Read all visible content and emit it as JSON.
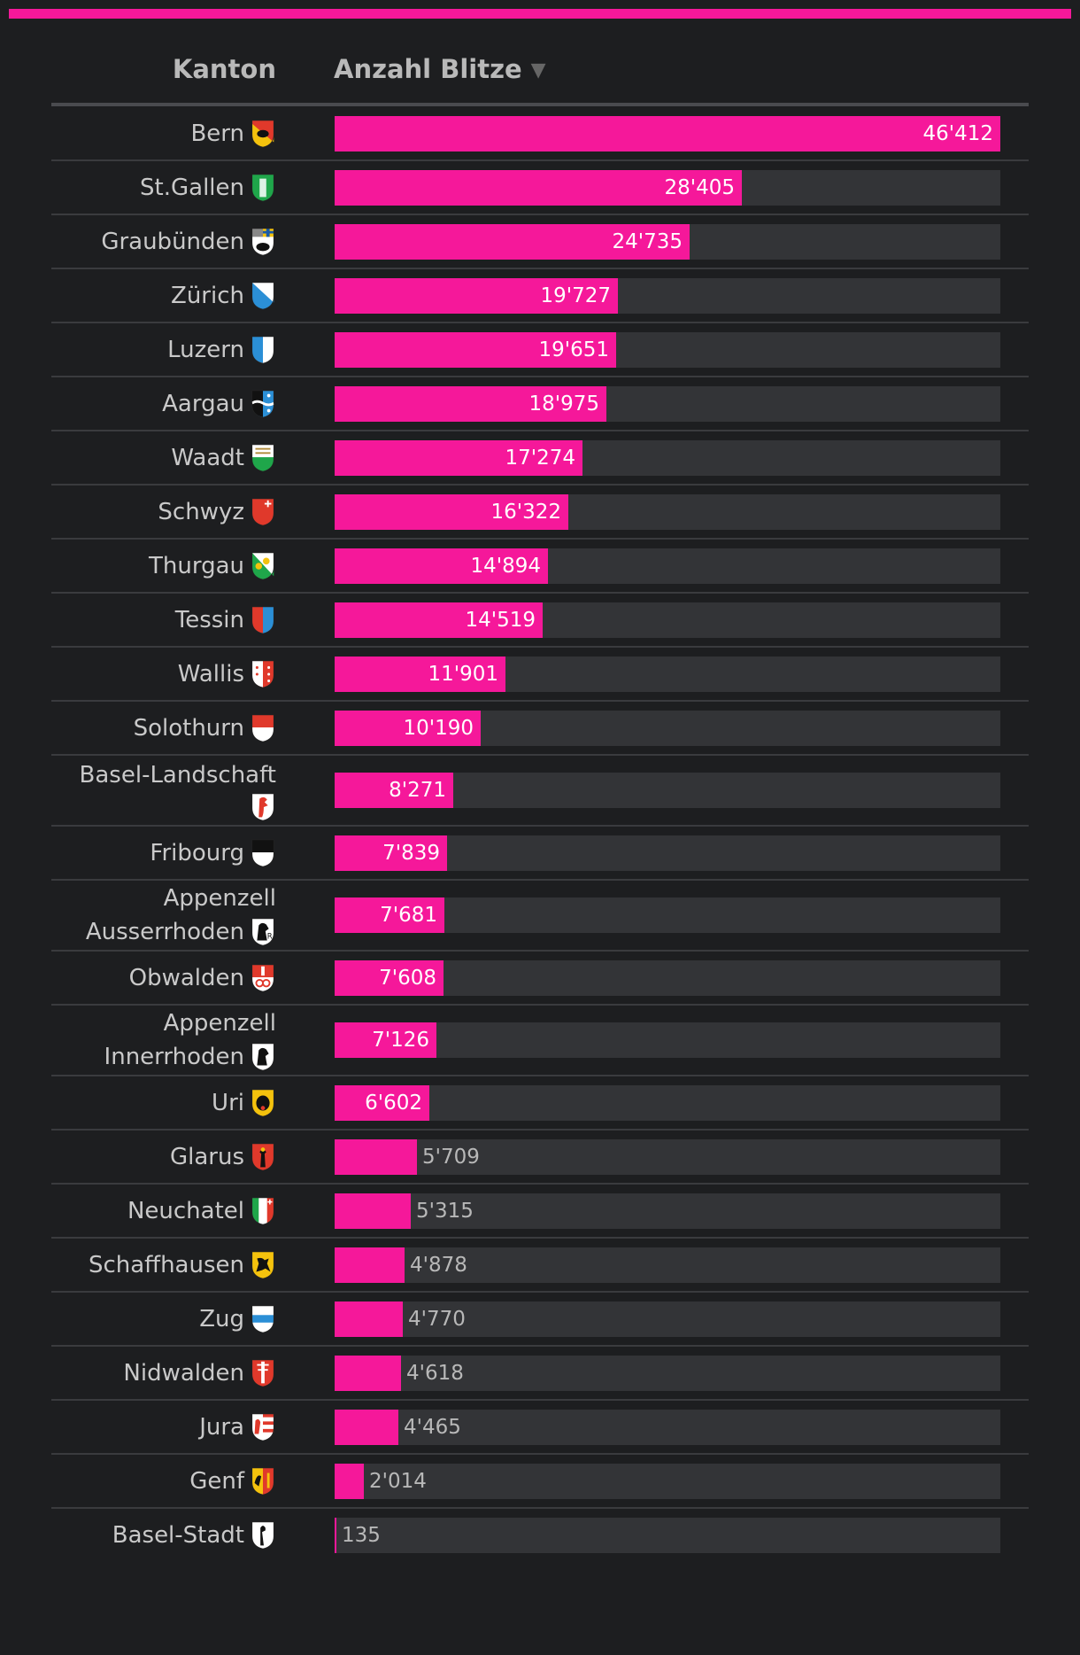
{
  "header": {
    "kanton": "Kanton",
    "anzahl": "Anzahl Blitze",
    "sort_icon": "▼"
  },
  "colors": {
    "bar": "#f5189a",
    "track": "#333437",
    "background": "#1d1e20"
  },
  "chart_data": {
    "type": "bar",
    "orientation": "horizontal",
    "xlim": [
      0,
      46412
    ],
    "categories": [
      "Bern",
      "St.Gallen",
      "Graubünden",
      "Zürich",
      "Luzern",
      "Aargau",
      "Waadt",
      "Schwyz",
      "Thurgau",
      "Tessin",
      "Wallis",
      "Solothurn",
      "Basel-Landschaft",
      "Fribourg",
      "Appenzell Ausserrhoden",
      "Obwalden",
      "Appenzell Innerrhoden",
      "Uri",
      "Glarus",
      "Neuchatel",
      "Schaffhausen",
      "Zug",
      "Nidwalden",
      "Jura",
      "Genf",
      "Basel-Stadt"
    ],
    "values": [
      46412,
      28405,
      24735,
      19727,
      19651,
      18975,
      17274,
      16322,
      14894,
      14519,
      11901,
      10190,
      8271,
      7839,
      7681,
      7608,
      7126,
      6602,
      5709,
      5315,
      4878,
      4770,
      4618,
      4465,
      2014,
      135
    ],
    "labels": [
      "46'412",
      "28'405",
      "24'735",
      "19'727",
      "19'651",
      "18'975",
      "17'274",
      "16'322",
      "14'894",
      "14'519",
      "11'901",
      "10'190",
      "8'271",
      "7'839",
      "7'681",
      "7'608",
      "7'126",
      "6'602",
      "5'709",
      "5'315",
      "4'878",
      "4'770",
      "4'618",
      "4'465",
      "2'014",
      "135"
    ],
    "crests": [
      "bern",
      "st-gallen",
      "graubuenden",
      "zuerich",
      "luzern",
      "aargau",
      "waadt",
      "schwyz",
      "thurgau",
      "tessin",
      "wallis",
      "solothurn",
      "basel-landschaft",
      "fribourg",
      "appenzell-ausserrhoden",
      "obwalden",
      "appenzell-innerrhoden",
      "uri",
      "glarus",
      "neuchatel",
      "schaffhausen",
      "zug",
      "nidwalden",
      "jura",
      "genf",
      "basel-stadt"
    ]
  }
}
